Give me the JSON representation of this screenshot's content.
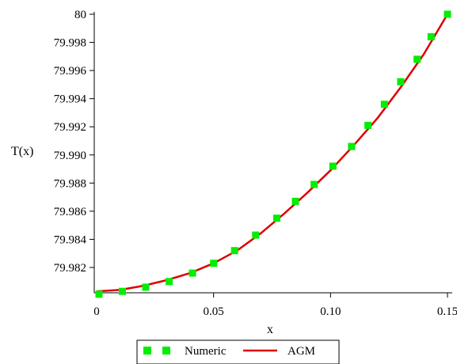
{
  "chart_data": {
    "type": "line",
    "title": "",
    "xlabel": "x",
    "ylabel": "T(x)",
    "xlim": [
      0,
      0.15
    ],
    "ylim": [
      79.9802,
      80.0
    ],
    "x_ticks": [
      "0",
      "0.05",
      "0.10",
      "0.15"
    ],
    "x_tick_values": [
      0,
      0.05,
      0.1,
      0.15
    ],
    "y_ticks": [
      "79.982",
      "79.984",
      "79.986",
      "79.988",
      "79.990",
      "79.992",
      "79.994",
      "79.996",
      "79.998",
      "80"
    ],
    "y_tick_values": [
      79.982,
      79.984,
      79.986,
      79.988,
      79.99,
      79.992,
      79.994,
      79.996,
      79.998,
      80.0
    ],
    "grid": false,
    "legend_position": "bottom",
    "series": [
      {
        "name": "Numeric",
        "style": "markers",
        "color": "#00ee00",
        "x": [
          0.001,
          0.011,
          0.021,
          0.031,
          0.041,
          0.05,
          0.059,
          0.068,
          0.077,
          0.085,
          0.093,
          0.101,
          0.109,
          0.116,
          0.123,
          0.13,
          0.137,
          0.143,
          0.15
        ],
        "y": [
          79.9801,
          79.9803,
          79.9806,
          79.981,
          79.9816,
          79.9823,
          79.9832,
          79.9843,
          79.9855,
          79.9867,
          79.9879,
          79.9892,
          79.9906,
          79.9921,
          79.9936,
          79.9952,
          79.9968,
          79.9984,
          80.0
        ]
      },
      {
        "name": "AGM",
        "style": "line",
        "color": "#dd0000",
        "x": [
          0.0,
          0.01,
          0.02,
          0.03,
          0.04,
          0.05,
          0.06,
          0.07,
          0.08,
          0.09,
          0.1,
          0.11,
          0.12,
          0.13,
          0.14,
          0.15
        ],
        "y": [
          79.9803,
          79.9804,
          79.9807,
          79.9811,
          79.9816,
          79.9823,
          79.9832,
          79.9844,
          79.9858,
          79.9873,
          79.9889,
          79.9907,
          79.9926,
          79.9948,
          79.9972,
          80.0
        ]
      }
    ]
  }
}
